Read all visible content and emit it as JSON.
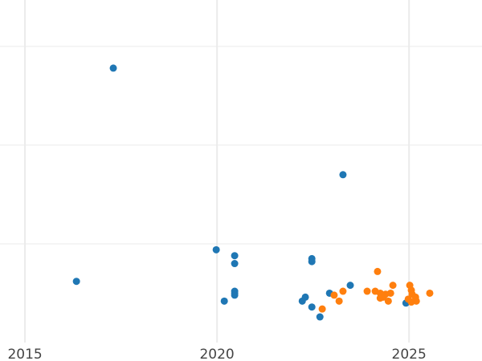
{
  "chart_data": {
    "type": "scatter",
    "title": "",
    "xlabel": "",
    "ylabel": "",
    "xlim": [
      2014.35,
      2026.9
    ],
    "ylim": [
      0,
      3.47
    ],
    "xticks": [
      2015,
      2020,
      2025
    ],
    "xtick_labels": [
      "2015",
      "2020",
      "2025"
    ],
    "ygrid": [
      1,
      2,
      3
    ],
    "grid": true,
    "legend": "none",
    "series": [
      {
        "color": "#1f77b4",
        "points": [
          [
            2017.3,
            2.78
          ],
          [
            2016.34,
            0.62
          ],
          [
            2019.98,
            0.94
          ],
          [
            2020.46,
            0.88
          ],
          [
            2020.46,
            0.8
          ],
          [
            2020.19,
            0.42
          ],
          [
            2020.46,
            0.52
          ],
          [
            2020.46,
            0.5
          ],
          [
            2020.46,
            0.48
          ],
          [
            2022.47,
            0.85
          ],
          [
            2022.47,
            0.82
          ],
          [
            2022.3,
            0.46
          ],
          [
            2022.22,
            0.42
          ],
          [
            2022.47,
            0.36
          ],
          [
            2022.68,
            0.26
          ],
          [
            2022.93,
            0.5
          ],
          [
            2023.47,
            0.58
          ],
          [
            2023.28,
            1.7
          ],
          [
            2024.92,
            0.4
          ]
        ]
      },
      {
        "color": "#ff7f0e",
        "points": [
          [
            2024.18,
            0.72
          ],
          [
            2024.58,
            0.58
          ],
          [
            2025.02,
            0.58
          ],
          [
            2025.54,
            0.5
          ],
          [
            2023.91,
            0.52
          ],
          [
            2024.12,
            0.52
          ],
          [
            2024.25,
            0.5
          ],
          [
            2024.39,
            0.49
          ],
          [
            2024.52,
            0.5
          ],
          [
            2024.33,
            0.46
          ],
          [
            2024.46,
            0.42
          ],
          [
            2024.25,
            0.45
          ],
          [
            2023.28,
            0.52
          ],
          [
            2023.05,
            0.48
          ],
          [
            2023.18,
            0.42
          ],
          [
            2022.74,
            0.34
          ],
          [
            2025.06,
            0.53
          ],
          [
            2025.08,
            0.49
          ],
          [
            2025.17,
            0.46
          ],
          [
            2024.98,
            0.44
          ],
          [
            2025.19,
            0.42
          ],
          [
            2025.06,
            0.41
          ]
        ]
      }
    ]
  }
}
